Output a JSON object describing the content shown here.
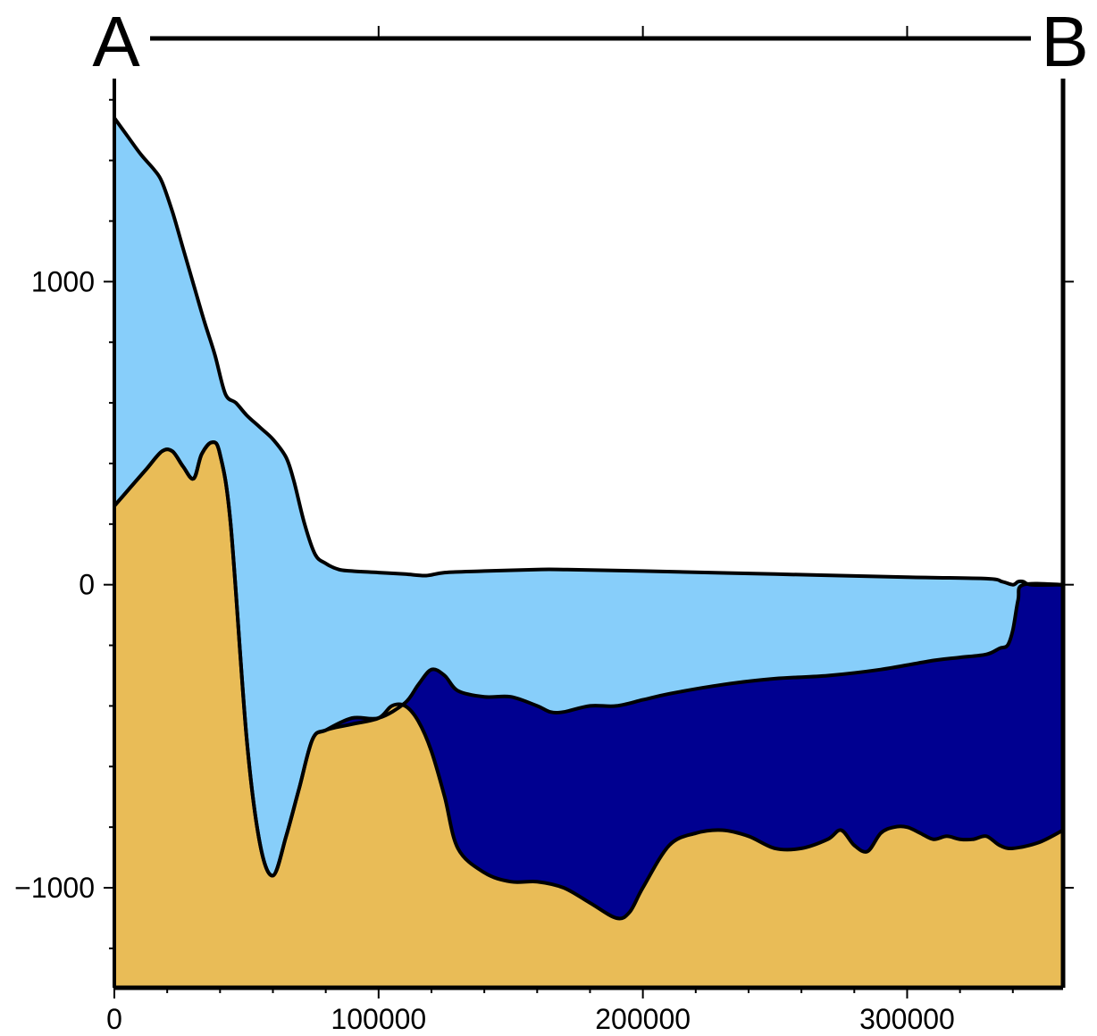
{
  "chart_data": {
    "type": "area",
    "title": "",
    "xlabel": "",
    "ylabel": "",
    "xlim": [
      0,
      359000
    ],
    "ylim": [
      -1330,
      1670
    ],
    "grid": false,
    "legend": "none",
    "profile_line": {
      "start_label": "A",
      "end_label": "B",
      "ticks": [
        100000,
        200000,
        300000
      ]
    },
    "x_ticks": [
      0,
      100000,
      200000,
      300000
    ],
    "x_tick_labels": [
      "0",
      "100000",
      "200000",
      "300000"
    ],
    "x_minor_step": 20000,
    "y_ticks": [
      -1000,
      0,
      1000
    ],
    "y_tick_labels": [
      "−1000",
      "0",
      "1000"
    ],
    "y_minor_step": 200,
    "series": [
      {
        "role": "ice-surface",
        "color": "#87cefa",
        "x": [
          0,
          5000,
          10000,
          15000,
          18000,
          22000,
          26000,
          30000,
          34000,
          38000,
          42000,
          46000,
          50000,
          55000,
          60000,
          65000,
          68000,
          72000,
          76000,
          80000,
          85000,
          90000,
          100000,
          110000,
          118000,
          125000,
          140000,
          160000,
          170000,
          200000,
          250000,
          300000,
          330000,
          336000,
          340000,
          342000,
          344000,
          347000,
          359000
        ],
        "values": [
          1540,
          1480,
          1420,
          1370,
          1330,
          1230,
          1110,
          990,
          870,
          760,
          630,
          600,
          560,
          520,
          480,
          420,
          340,
          200,
          100,
          70,
          50,
          45,
          40,
          35,
          30,
          40,
          45,
          50,
          50,
          45,
          35,
          25,
          20,
          10,
          0,
          10,
          10,
          0,
          0
        ]
      },
      {
        "role": "ice-base",
        "color": "#000090",
        "x": [
          0,
          6000,
          12000,
          18000,
          22000,
          26000,
          30000,
          33000,
          37000,
          40000,
          44000,
          50000,
          55000,
          60000,
          65000,
          70000,
          75000,
          80000,
          90000,
          100000,
          110000,
          115000,
          120000,
          125000,
          130000,
          140000,
          150000,
          160000,
          165000,
          170000,
          180000,
          190000,
          200000,
          210000,
          230000,
          250000,
          270000,
          290000,
          310000,
          320000,
          330000,
          335000,
          338000,
          340000,
          342000,
          344000,
          359000
        ],
        "values": [
          260,
          320,
          380,
          440,
          440,
          390,
          350,
          430,
          470,
          430,
          200,
          -500,
          -850,
          -960,
          -830,
          -670,
          -510,
          -480,
          -440,
          -440,
          -390,
          -330,
          -280,
          -300,
          -350,
          -370,
          -370,
          -400,
          -420,
          -420,
          -400,
          -400,
          -380,
          -360,
          -330,
          -310,
          -300,
          -280,
          -250,
          -240,
          -230,
          -210,
          -200,
          -150,
          -50,
          0,
          0
        ]
      },
      {
        "role": "bed",
        "color": "#e9bc57",
        "x": [
          0,
          6000,
          12000,
          18000,
          22000,
          26000,
          30000,
          33000,
          37000,
          40000,
          44000,
          50000,
          55000,
          60000,
          65000,
          70000,
          75000,
          80000,
          90000,
          100000,
          105000,
          110000,
          115000,
          120000,
          125000,
          130000,
          140000,
          150000,
          160000,
          170000,
          180000,
          190000,
          195000,
          200000,
          210000,
          220000,
          230000,
          240000,
          250000,
          260000,
          270000,
          275000,
          280000,
          285000,
          290000,
          295000,
          300000,
          305000,
          310000,
          315000,
          320000,
          325000,
          330000,
          335000,
          340000,
          350000,
          359000
        ],
        "values": [
          260,
          320,
          380,
          440,
          440,
          390,
          350,
          430,
          470,
          430,
          200,
          -500,
          -850,
          -960,
          -830,
          -670,
          -510,
          -480,
          -460,
          -440,
          -400,
          -400,
          -450,
          -550,
          -700,
          -870,
          -950,
          -980,
          -980,
          -1000,
          -1050,
          -1100,
          -1080,
          -1000,
          -860,
          -820,
          -810,
          -830,
          -870,
          -870,
          -840,
          -810,
          -860,
          -880,
          -820,
          -800,
          -800,
          -820,
          -840,
          -830,
          -840,
          -840,
          -830,
          -860,
          -870,
          -850,
          -810
        ]
      }
    ]
  }
}
